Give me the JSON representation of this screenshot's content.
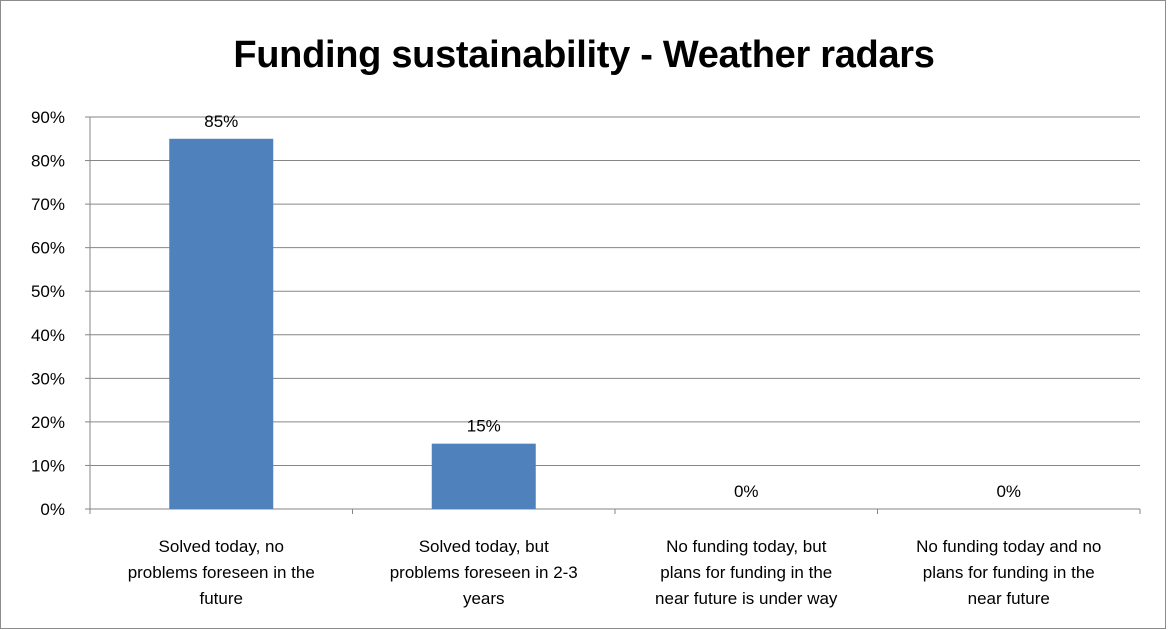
{
  "chart_data": {
    "type": "bar",
    "title": "Funding sustainability - Weather radars",
    "categories": [
      [
        "Solved today, no",
        "problems foreseen in the",
        "future"
      ],
      [
        "Solved today, but",
        "problems foreseen in 2-3",
        "years"
      ],
      [
        "No funding today, but",
        "plans for funding in the",
        "near future is under way"
      ],
      [
        "No funding today and no",
        "plans for funding in the",
        "near future"
      ]
    ],
    "values": [
      85,
      15,
      0,
      0
    ],
    "data_labels": [
      "85%",
      "15%",
      "0%",
      "0%"
    ],
    "yticks": [
      "0%",
      "10%",
      "20%",
      "30%",
      "40%",
      "50%",
      "60%",
      "70%",
      "80%",
      "90%"
    ],
    "ylim": [
      0,
      90
    ],
    "grid": true,
    "legend": "none",
    "bar_color": "#4f81bd",
    "grid_color": "#868686"
  }
}
